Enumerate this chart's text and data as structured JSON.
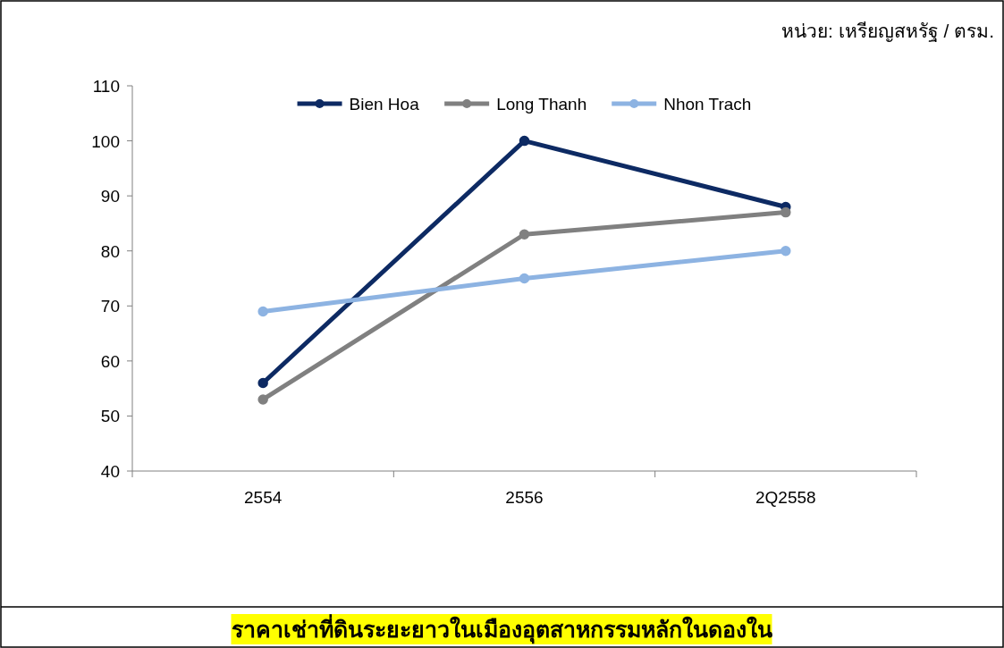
{
  "chart_data": {
    "type": "line",
    "title": "ราคาเช่าที่ดินระยะยาวในเมืองอุตสาหกรรมหลักในดองใน",
    "ylabel": "หน่วย: เหรียญสหรัฐ / ตรม.",
    "categories": [
      "2554",
      "2556",
      "2Q2558"
    ],
    "series": [
      {
        "name": "Bien Hoa",
        "color": "#0d2a63",
        "values": [
          56,
          100,
          88
        ]
      },
      {
        "name": "Long Thanh",
        "color": "#808080",
        "values": [
          53,
          83,
          87
        ]
      },
      {
        "name": "Nhon Trach",
        "color": "#8db3e2",
        "values": [
          69,
          75,
          80
        ]
      }
    ],
    "ylim": [
      40,
      110
    ],
    "yticks": [
      40,
      50,
      60,
      70,
      80,
      90,
      100,
      110
    ],
    "legend": "top",
    "marker": "circle"
  }
}
